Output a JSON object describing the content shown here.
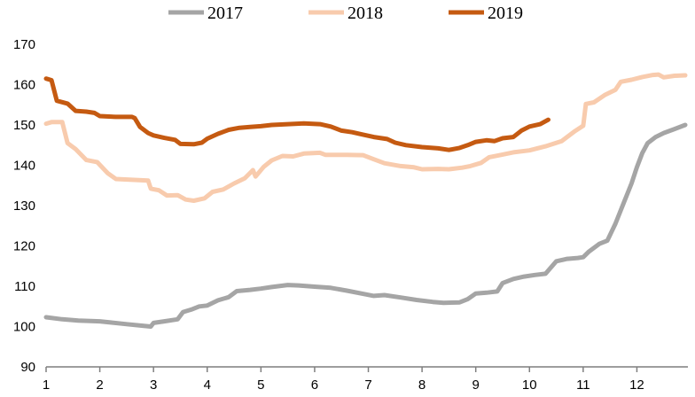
{
  "chart_data": {
    "type": "line",
    "title": "",
    "xlabel": "",
    "ylabel": "",
    "xlim": [
      1,
      12.95
    ],
    "ylim": [
      90,
      170
    ],
    "x_ticks": [
      "1",
      "2",
      "3",
      "4",
      "5",
      "6",
      "7",
      "8",
      "9",
      "10",
      "11",
      "12"
    ],
    "y_ticks": [
      "90",
      "100",
      "110",
      "120",
      "130",
      "140",
      "150",
      "160",
      "170"
    ],
    "grid": false,
    "legend_position": "top",
    "series": [
      {
        "name": "2017",
        "color": "#a5a5a5",
        "points": [
          [
            1.0,
            102.3
          ],
          [
            1.3,
            101.8
          ],
          [
            1.6,
            101.5
          ],
          [
            2.0,
            101.3
          ],
          [
            2.2,
            101.0
          ],
          [
            2.5,
            100.6
          ],
          [
            2.8,
            100.2
          ],
          [
            2.95,
            100.0
          ],
          [
            3.0,
            100.9
          ],
          [
            3.2,
            101.3
          ],
          [
            3.45,
            101.8
          ],
          [
            3.55,
            103.6
          ],
          [
            3.7,
            104.2
          ],
          [
            3.85,
            105.0
          ],
          [
            4.0,
            105.2
          ],
          [
            4.2,
            106.5
          ],
          [
            4.4,
            107.3
          ],
          [
            4.55,
            108.8
          ],
          [
            4.8,
            109.1
          ],
          [
            5.0,
            109.4
          ],
          [
            5.2,
            109.8
          ],
          [
            5.5,
            110.3
          ],
          [
            5.7,
            110.2
          ],
          [
            6.0,
            109.9
          ],
          [
            6.3,
            109.6
          ],
          [
            6.6,
            108.9
          ],
          [
            6.9,
            108.1
          ],
          [
            7.1,
            107.6
          ],
          [
            7.3,
            107.8
          ],
          [
            7.6,
            107.2
          ],
          [
            7.9,
            106.6
          ],
          [
            8.2,
            106.1
          ],
          [
            8.4,
            105.9
          ],
          [
            8.7,
            106.0
          ],
          [
            8.85,
            106.8
          ],
          [
            9.0,
            108.2
          ],
          [
            9.2,
            108.4
          ],
          [
            9.4,
            108.7
          ],
          [
            9.5,
            110.8
          ],
          [
            9.7,
            111.8
          ],
          [
            9.9,
            112.4
          ],
          [
            10.1,
            112.8
          ],
          [
            10.3,
            113.1
          ],
          [
            10.5,
            116.2
          ],
          [
            10.7,
            116.8
          ],
          [
            10.9,
            117.0
          ],
          [
            11.0,
            117.2
          ],
          [
            11.1,
            118.5
          ],
          [
            11.3,
            120.5
          ],
          [
            11.45,
            121.3
          ],
          [
            11.6,
            125.5
          ],
          [
            11.75,
            130.5
          ],
          [
            11.9,
            135.5
          ],
          [
            12.0,
            139.5
          ],
          [
            12.1,
            143.0
          ],
          [
            12.2,
            145.5
          ],
          [
            12.35,
            147.0
          ],
          [
            12.5,
            148.0
          ],
          [
            12.7,
            149.0
          ],
          [
            12.9,
            150.0
          ]
        ]
      },
      {
        "name": "2018",
        "color": "#f8cbad",
        "points": [
          [
            1.0,
            150.3
          ],
          [
            1.1,
            150.7
          ],
          [
            1.3,
            150.7
          ],
          [
            1.4,
            145.5
          ],
          [
            1.55,
            144.0
          ],
          [
            1.75,
            141.3
          ],
          [
            1.95,
            140.8
          ],
          [
            2.15,
            138.0
          ],
          [
            2.3,
            136.6
          ],
          [
            2.6,
            136.4
          ],
          [
            2.9,
            136.2
          ],
          [
            2.95,
            134.2
          ],
          [
            3.1,
            133.8
          ],
          [
            3.25,
            132.5
          ],
          [
            3.45,
            132.6
          ],
          [
            3.6,
            131.5
          ],
          [
            3.75,
            131.2
          ],
          [
            3.95,
            131.8
          ],
          [
            4.1,
            133.4
          ],
          [
            4.3,
            134.0
          ],
          [
            4.5,
            135.5
          ],
          [
            4.7,
            136.8
          ],
          [
            4.85,
            138.8
          ],
          [
            4.9,
            137.2
          ],
          [
            5.05,
            139.6
          ],
          [
            5.2,
            141.2
          ],
          [
            5.4,
            142.3
          ],
          [
            5.6,
            142.2
          ],
          [
            5.8,
            142.9
          ],
          [
            6.1,
            143.1
          ],
          [
            6.2,
            142.6
          ],
          [
            6.6,
            142.6
          ],
          [
            6.9,
            142.5
          ],
          [
            7.1,
            141.5
          ],
          [
            7.3,
            140.5
          ],
          [
            7.6,
            139.8
          ],
          [
            7.85,
            139.5
          ],
          [
            8.0,
            139.0
          ],
          [
            8.3,
            139.1
          ],
          [
            8.5,
            139.0
          ],
          [
            8.75,
            139.4
          ],
          [
            8.9,
            139.8
          ],
          [
            9.1,
            140.6
          ],
          [
            9.25,
            142.0
          ],
          [
            9.45,
            142.5
          ],
          [
            9.7,
            143.2
          ],
          [
            10.0,
            143.7
          ],
          [
            10.3,
            144.7
          ],
          [
            10.6,
            146.0
          ],
          [
            10.85,
            148.5
          ],
          [
            11.0,
            149.8
          ],
          [
            11.05,
            155.2
          ],
          [
            11.2,
            155.6
          ],
          [
            11.4,
            157.4
          ],
          [
            11.6,
            158.7
          ],
          [
            11.7,
            160.7
          ],
          [
            11.9,
            161.2
          ],
          [
            12.1,
            161.9
          ],
          [
            12.3,
            162.4
          ],
          [
            12.4,
            162.5
          ],
          [
            12.5,
            161.8
          ],
          [
            12.7,
            162.2
          ],
          [
            12.9,
            162.3
          ]
        ]
      },
      {
        "name": "2019",
        "color": "#c55a11",
        "points": [
          [
            1.0,
            161.5
          ],
          [
            1.1,
            161.1
          ],
          [
            1.2,
            156.0
          ],
          [
            1.4,
            155.3
          ],
          [
            1.55,
            153.5
          ],
          [
            1.75,
            153.3
          ],
          [
            1.9,
            153.0
          ],
          [
            2.0,
            152.2
          ],
          [
            2.3,
            152.0
          ],
          [
            2.6,
            152.0
          ],
          [
            2.65,
            151.7
          ],
          [
            2.75,
            149.5
          ],
          [
            2.9,
            148.0
          ],
          [
            3.0,
            147.4
          ],
          [
            3.2,
            146.8
          ],
          [
            3.4,
            146.3
          ],
          [
            3.5,
            145.3
          ],
          [
            3.75,
            145.2
          ],
          [
            3.9,
            145.6
          ],
          [
            4.0,
            146.6
          ],
          [
            4.2,
            147.8
          ],
          [
            4.4,
            148.8
          ],
          [
            4.6,
            149.3
          ],
          [
            4.8,
            149.5
          ],
          [
            5.0,
            149.7
          ],
          [
            5.2,
            150.0
          ],
          [
            5.5,
            150.2
          ],
          [
            5.8,
            150.4
          ],
          [
            6.1,
            150.2
          ],
          [
            6.3,
            149.6
          ],
          [
            6.5,
            148.6
          ],
          [
            6.7,
            148.2
          ],
          [
            6.9,
            147.6
          ],
          [
            7.1,
            147.0
          ],
          [
            7.35,
            146.5
          ],
          [
            7.5,
            145.6
          ],
          [
            7.7,
            145.0
          ],
          [
            8.0,
            144.5
          ],
          [
            8.3,
            144.2
          ],
          [
            8.5,
            143.8
          ],
          [
            8.7,
            144.3
          ],
          [
            8.85,
            145.0
          ],
          [
            9.0,
            145.8
          ],
          [
            9.2,
            146.2
          ],
          [
            9.35,
            146.0
          ],
          [
            9.5,
            146.7
          ],
          [
            9.7,
            147.0
          ],
          [
            9.85,
            148.6
          ],
          [
            10.0,
            149.6
          ],
          [
            10.2,
            150.2
          ],
          [
            10.35,
            151.3
          ]
        ]
      }
    ]
  }
}
